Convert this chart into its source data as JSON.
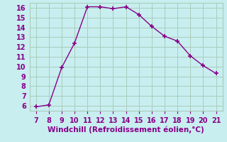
{
  "x": [
    7,
    8,
    9,
    10,
    11,
    12,
    13,
    14,
    15,
    16,
    17,
    18,
    19,
    20,
    21
  ],
  "y": [
    5.9,
    6.1,
    9.9,
    12.4,
    16.1,
    16.1,
    15.9,
    16.1,
    15.3,
    14.1,
    13.1,
    12.6,
    11.1,
    10.1,
    9.3
  ],
  "line_color": "#880088",
  "marker": "+",
  "background_color": "#c8eef0",
  "grid_color": "#aaccbb",
  "tick_label_color": "#880088",
  "xlabel": "Windchill (Refroidissement éolien,°C)",
  "xlabel_color": "#880088",
  "xlim": [
    6.5,
    21.5
  ],
  "ylim": [
    5.5,
    16.5
  ],
  "xticks": [
    7,
    8,
    9,
    10,
    11,
    12,
    13,
    14,
    15,
    16,
    17,
    18,
    19,
    20,
    21
  ],
  "yticks": [
    6,
    7,
    8,
    9,
    10,
    11,
    12,
    13,
    14,
    15,
    16
  ],
  "tick_fontsize": 7,
  "label_fontsize": 7.5
}
